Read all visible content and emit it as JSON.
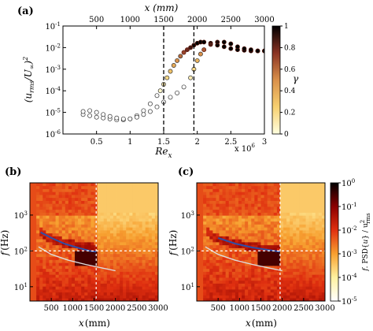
{
  "chart_data": [
    {
      "panel": "(a)",
      "type": "scatter",
      "xlabel": "Re",
      "xlabel_sub": "x",
      "x_multiplier": "x 10",
      "x_multiplier_exp": "6",
      "top_xlabel": "x (mm)",
      "ylabel_text": "(u",
      "ylabel_sub": "rms",
      "ylabel_mid": "/U",
      "ylabel_sub2": "∞",
      "ylabel_end": ")",
      "ylabel_sup": "2",
      "xlim": [
        0,
        3
      ],
      "ylim_log10": [
        -6,
        -1
      ],
      "xticks": [
        0.5,
        1,
        1.5,
        2,
        2.5,
        3
      ],
      "xtick_labels": [
        "0.5",
        "1",
        "1.5",
        "2",
        "2.5",
        "3"
      ],
      "top_xticks": [
        500,
        1000,
        1500,
        2000,
        2500,
        3000
      ],
      "top_xtick_labels": [
        "500",
        "1000",
        "1500",
        "2000",
        "2500",
        "3000"
      ],
      "top_xticks_at_Re": [
        0.5,
        1.0,
        1.5,
        2.0,
        2.5,
        3.0
      ],
      "yticks_exp": [
        -6,
        -5,
        -4,
        -3,
        -2,
        -1
      ],
      "ytick_base": "10",
      "ytick_exps": [
        "-6",
        "-5",
        "-4",
        "-3",
        "-2",
        "-1"
      ],
      "dashed_lines_Re": [
        1.5,
        1.95
      ],
      "colorbar": {
        "label": "γ",
        "ticks": [
          0,
          0.2,
          0.4,
          0.6,
          0.8,
          1
        ],
        "tick_labels": [
          "0",
          "0.2",
          "0.4",
          "0.6",
          "0.8",
          "1"
        ]
      },
      "series": [
        {
          "x": [
            0.3,
            0.4,
            0.5,
            0.6,
            0.7,
            0.8,
            0.9,
            1.0,
            1.1,
            1.2,
            1.3,
            1.4,
            1.45,
            1.5,
            1.55,
            1.6,
            1.65,
            1.7,
            1.75,
            1.8,
            1.85,
            1.9,
            1.95,
            2.0,
            2.05,
            2.1,
            2.2,
            2.3,
            2.4,
            2.5,
            2.6,
            2.7,
            2.8,
            2.9,
            3.0
          ],
          "y": [
            8e-06,
            7e-06,
            6e-06,
            5.5e-06,
            5e-06,
            4.5e-06,
            4.5e-06,
            5e-06,
            7e-06,
            1.2e-05,
            2.5e-05,
            6e-05,
            0.0001,
            0.0002,
            0.0004,
            0.0008,
            0.0015,
            0.0025,
            0.004,
            0.006,
            0.008,
            0.01,
            0.013,
            0.016,
            0.018,
            0.018,
            0.016,
            0.013,
            0.011,
            0.009,
            0.008,
            0.0075,
            0.007,
            0.007,
            0.007
          ],
          "gamma": [
            0,
            0,
            0,
            0,
            0,
            0,
            0,
            0,
            0,
            0,
            0,
            0,
            0.05,
            0.1,
            0.2,
            0.3,
            0.4,
            0.5,
            0.6,
            0.7,
            0.8,
            0.88,
            0.95,
            1,
            1,
            1,
            1,
            1,
            1,
            1,
            1,
            1,
            1,
            1,
            1
          ]
        },
        {
          "x": [
            0.3,
            0.4,
            0.5,
            0.6,
            0.7,
            0.8,
            0.9,
            1.0,
            1.1,
            1.2,
            1.3,
            1.4,
            1.5,
            1.6,
            1.7,
            1.8,
            1.9,
            1.95,
            2.0,
            2.05,
            2.1,
            2.2,
            2.3,
            2.4,
            2.5,
            2.6,
            2.7,
            2.8,
            2.9,
            3.0
          ],
          "y": [
            1.1e-05,
            1.2e-05,
            1e-05,
            8e-06,
            6.5e-06,
            5.5e-06,
            5e-06,
            5e-06,
            6e-06,
            8e-06,
            1.1e-05,
            1.8e-05,
            3e-05,
            5e-05,
            8e-05,
            0.00015,
            0.0004,
            0.001,
            0.0025,
            0.005,
            0.008,
            0.014,
            0.018,
            0.018,
            0.015,
            0.011,
            0.009,
            0.008,
            0.007,
            0.007
          ],
          "gamma": [
            0,
            0,
            0,
            0,
            0,
            0,
            0,
            0,
            0,
            0,
            0,
            0,
            0,
            0,
            0,
            0.02,
            0.1,
            0.2,
            0.35,
            0.5,
            0.65,
            0.85,
            0.95,
            1,
            1,
            1,
            1,
            1,
            1,
            1
          ]
        }
      ]
    },
    {
      "panel": "(b)",
      "type": "heatmap",
      "xlabel": "x",
      "xlabel_unit": "(mm)",
      "ylabel": "f",
      "ylabel_unit": "(Hz)",
      "xlim": [
        0,
        3000
      ],
      "ylim_log10": [
        0.6,
        3.9
      ],
      "xticks": [
        500,
        1000,
        1500,
        2000,
        2500,
        3000
      ],
      "xtick_labels": [
        "500",
        "1000",
        "1500",
        "2000",
        "2500",
        "3000"
      ],
      "yticks_exp": [
        1,
        2,
        3
      ],
      "ytick_base": "10",
      "ytick_exps": [
        "1",
        "2",
        "3"
      ],
      "transition_x": 1550,
      "hline_f": 100,
      "vline_x": 1550,
      "curve_x_mm": [
        250,
        500,
        800,
        1100,
        1400,
        1550
      ],
      "curve_f_hz": [
        330,
        230,
        160,
        125,
        100,
        95
      ],
      "white_curve_x_mm": [
        200,
        500,
        900,
        1300,
        1700,
        2000
      ],
      "white_curve_f_hz": [
        130,
        80,
        55,
        42,
        33,
        28
      ]
    },
    {
      "panel": "(c)",
      "type": "heatmap",
      "xlabel": "x",
      "xlabel_unit": "(mm)",
      "ylabel": "f",
      "ylabel_unit": "(Hz)",
      "xlim": [
        0,
        3000
      ],
      "ylim_log10": [
        0.6,
        3.9
      ],
      "xticks": [
        500,
        1000,
        1500,
        2000,
        2500,
        3000
      ],
      "xtick_labels": [
        "500",
        "1000",
        "1500",
        "2000",
        "2500",
        "3000"
      ],
      "yticks_exp": [
        1,
        2,
        3
      ],
      "ytick_base": "10",
      "ytick_exps": [
        "1",
        "2",
        "3"
      ],
      "transition_x": 1950,
      "hline_f": 100,
      "vline_x": 1950,
      "curve_x_mm": [
        500,
        900,
        1300,
        1700,
        1950
      ],
      "curve_f_hz": [
        230,
        160,
        125,
        105,
        95
      ],
      "white_curve_x_mm": [
        200,
        500,
        900,
        1300,
        1700,
        2000
      ],
      "white_curve_f_hz": [
        130,
        80,
        55,
        42,
        33,
        28
      ],
      "colorbar": {
        "label_prefix": "f",
        "label_mid": ". PSD{",
        "label_var": "u",
        "label_end": "} / u",
        "label_sup": "2",
        "label_sub": "rms",
        "ticks_exp": [
          -5,
          -4,
          -3,
          -2,
          -1,
          0
        ],
        "tick_base": "10",
        "tick_exps": [
          "-5",
          "-4",
          "-3",
          "-2",
          "-1",
          "0"
        ]
      }
    }
  ]
}
